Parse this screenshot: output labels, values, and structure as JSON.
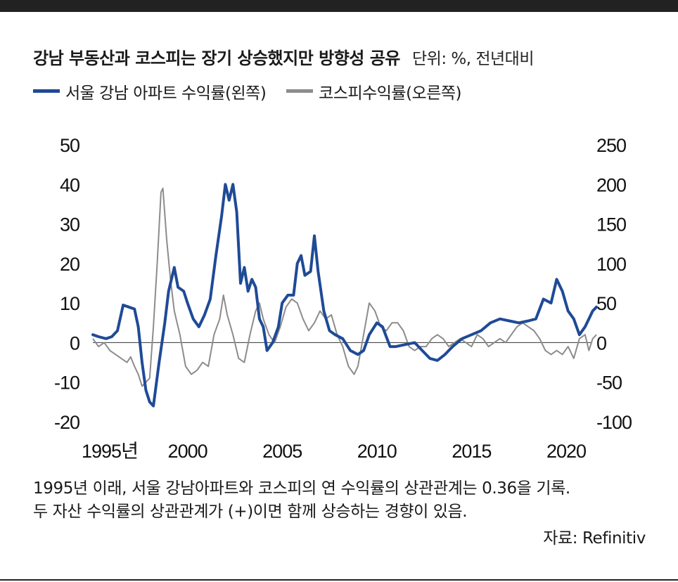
{
  "header": {
    "title": "강남 부동산과 코스피는 장기 상승했지만 방향성 공유",
    "unit": "단위: %, 전년대비"
  },
  "notes": {
    "line1": "1995년 이래, 서울 강남아파트와 코스피의 연 수익률의 상관관계는 0.36을 기록.",
    "line2": "두 자산 수익률의 상관관계가 (+)이면 함께 상승하는 경향이 있음.",
    "source": "자료: Refinitiv"
  },
  "colors": {
    "gangnam": "#1f4a96",
    "kospi": "#8c8c8c",
    "zero_line": "#333333"
  },
  "chart_data": {
    "type": "line",
    "title": "강남 부동산과 코스피는 장기 상승했지만 방향성 공유",
    "x_tick_labels": [
      "1995년",
      "2000",
      "2005",
      "2010",
      "2015",
      "2020"
    ],
    "x_tick_values": [
      1995,
      2000,
      2005,
      2010,
      2015,
      2020
    ],
    "xlim": [
      1995,
      2021.3
    ],
    "y_left": {
      "lim": [
        -20,
        50
      ],
      "ticks": [
        "50",
        "40",
        "30",
        "20",
        "10",
        "0",
        "-10",
        "-20"
      ]
    },
    "y_right": {
      "lim": [
        -100,
        250
      ],
      "ticks": [
        "250",
        "200",
        "150",
        "100",
        "50",
        "0",
        "-50",
        "-100"
      ]
    },
    "series": [
      {
        "name": "서울 강남 아파트 수익률(왼쪽)",
        "axis": "left",
        "points": [
          [
            1995.0,
            2
          ],
          [
            1995.3,
            1.5
          ],
          [
            1995.7,
            1
          ],
          [
            1996.0,
            1.5
          ],
          [
            1996.3,
            3
          ],
          [
            1996.6,
            9.5
          ],
          [
            1996.9,
            9
          ],
          [
            1997.2,
            8.5
          ],
          [
            1997.4,
            4
          ],
          [
            1997.6,
            -5
          ],
          [
            1997.8,
            -12
          ],
          [
            1998.0,
            -15
          ],
          [
            1998.2,
            -16
          ],
          [
            1998.5,
            -5
          ],
          [
            1998.8,
            5
          ],
          [
            1999.0,
            13
          ],
          [
            1999.3,
            19
          ],
          [
            1999.5,
            14
          ],
          [
            1999.8,
            13
          ],
          [
            2000.0,
            10
          ],
          [
            2000.3,
            6
          ],
          [
            2000.6,
            4
          ],
          [
            2000.9,
            7
          ],
          [
            2001.2,
            11
          ],
          [
            2001.5,
            22
          ],
          [
            2001.8,
            32
          ],
          [
            2002.0,
            40
          ],
          [
            2002.2,
            36
          ],
          [
            2002.4,
            40
          ],
          [
            2002.6,
            33
          ],
          [
            2002.8,
            15
          ],
          [
            2003.0,
            19
          ],
          [
            2003.2,
            13
          ],
          [
            2003.4,
            16
          ],
          [
            2003.6,
            14
          ],
          [
            2003.8,
            6
          ],
          [
            2004.0,
            4
          ],
          [
            2004.2,
            -2
          ],
          [
            2004.5,
            0
          ],
          [
            2004.8,
            4
          ],
          [
            2005.0,
            10
          ],
          [
            2005.3,
            12
          ],
          [
            2005.6,
            12
          ],
          [
            2005.8,
            20
          ],
          [
            2006.0,
            22
          ],
          [
            2006.2,
            17
          ],
          [
            2006.5,
            18
          ],
          [
            2006.7,
            27
          ],
          [
            2006.9,
            18
          ],
          [
            2007.2,
            8
          ],
          [
            2007.5,
            3
          ],
          [
            2007.8,
            2
          ],
          [
            2008.2,
            1
          ],
          [
            2008.6,
            -2
          ],
          [
            2009.0,
            -3
          ],
          [
            2009.3,
            -2
          ],
          [
            2009.6,
            2
          ],
          [
            2010.0,
            5
          ],
          [
            2010.3,
            4
          ],
          [
            2010.7,
            -1
          ],
          [
            2011.0,
            -1
          ],
          [
            2011.5,
            -0.5
          ],
          [
            2012.0,
            0
          ],
          [
            2012.4,
            -2
          ],
          [
            2012.8,
            -4
          ],
          [
            2013.2,
            -4.5
          ],
          [
            2013.6,
            -3
          ],
          [
            2014.0,
            -1
          ],
          [
            2014.5,
            1
          ],
          [
            2015.0,
            2
          ],
          [
            2015.5,
            3
          ],
          [
            2016.0,
            5
          ],
          [
            2016.5,
            6
          ],
          [
            2017.0,
            5.5
          ],
          [
            2017.5,
            5
          ],
          [
            2018.0,
            5.5
          ],
          [
            2018.4,
            6
          ],
          [
            2018.8,
            11
          ],
          [
            2019.2,
            10
          ],
          [
            2019.5,
            16
          ],
          [
            2019.8,
            13
          ],
          [
            2020.1,
            8
          ],
          [
            2020.4,
            6
          ],
          [
            2020.7,
            2
          ],
          [
            2021.0,
            4
          ],
          [
            2021.2,
            6
          ],
          [
            2021.4,
            8
          ],
          [
            2021.6,
            9
          ]
        ]
      },
      {
        "name": "코스피수익률(오른쪽)",
        "axis": "right",
        "points": [
          [
            1995.0,
            5
          ],
          [
            1995.3,
            -5
          ],
          [
            1995.6,
            0
          ],
          [
            1995.9,
            -10
          ],
          [
            1996.2,
            -15
          ],
          [
            1996.5,
            -20
          ],
          [
            1996.8,
            -25
          ],
          [
            1997.0,
            -18
          ],
          [
            1997.2,
            -30
          ],
          [
            1997.4,
            -40
          ],
          [
            1997.6,
            -55
          ],
          [
            1997.8,
            -50
          ],
          [
            1998.0,
            -45
          ],
          [
            1998.2,
            20
          ],
          [
            1998.4,
            100
          ],
          [
            1998.6,
            190
          ],
          [
            1998.7,
            195
          ],
          [
            1998.9,
            130
          ],
          [
            1999.1,
            80
          ],
          [
            1999.3,
            40
          ],
          [
            1999.6,
            10
          ],
          [
            1999.9,
            -30
          ],
          [
            2000.2,
            -40
          ],
          [
            2000.5,
            -35
          ],
          [
            2000.8,
            -25
          ],
          [
            2001.1,
            -30
          ],
          [
            2001.4,
            10
          ],
          [
            2001.7,
            30
          ],
          [
            2001.9,
            60
          ],
          [
            2002.1,
            35
          ],
          [
            2002.4,
            10
          ],
          [
            2002.7,
            -20
          ],
          [
            2003.0,
            -25
          ],
          [
            2003.3,
            10
          ],
          [
            2003.6,
            40
          ],
          [
            2003.8,
            50
          ],
          [
            2004.0,
            30
          ],
          [
            2004.3,
            10
          ],
          [
            2004.6,
            0
          ],
          [
            2004.9,
            20
          ],
          [
            2005.2,
            45
          ],
          [
            2005.5,
            55
          ],
          [
            2005.8,
            50
          ],
          [
            2006.1,
            30
          ],
          [
            2006.4,
            15
          ],
          [
            2006.7,
            25
          ],
          [
            2007.0,
            40
          ],
          [
            2007.3,
            30
          ],
          [
            2007.6,
            35
          ],
          [
            2007.9,
            10
          ],
          [
            2008.2,
            -5
          ],
          [
            2008.5,
            -30
          ],
          [
            2008.8,
            -40
          ],
          [
            2009.0,
            -30
          ],
          [
            2009.3,
            10
          ],
          [
            2009.6,
            50
          ],
          [
            2009.9,
            40
          ],
          [
            2010.2,
            20
          ],
          [
            2010.5,
            15
          ],
          [
            2010.8,
            25
          ],
          [
            2011.1,
            25
          ],
          [
            2011.4,
            15
          ],
          [
            2011.7,
            -5
          ],
          [
            2012.0,
            -10
          ],
          [
            2012.3,
            -5
          ],
          [
            2012.6,
            -5
          ],
          [
            2012.9,
            5
          ],
          [
            2013.2,
            10
          ],
          [
            2013.5,
            5
          ],
          [
            2013.8,
            -5
          ],
          [
            2014.1,
            0
          ],
          [
            2014.4,
            5
          ],
          [
            2014.7,
            0
          ],
          [
            2015.0,
            -5
          ],
          [
            2015.3,
            10
          ],
          [
            2015.6,
            5
          ],
          [
            2015.9,
            -5
          ],
          [
            2016.2,
            0
          ],
          [
            2016.5,
            5
          ],
          [
            2016.8,
            0
          ],
          [
            2017.1,
            10
          ],
          [
            2017.4,
            20
          ],
          [
            2017.7,
            25
          ],
          [
            2018.0,
            20
          ],
          [
            2018.3,
            15
          ],
          [
            2018.6,
            5
          ],
          [
            2018.9,
            -10
          ],
          [
            2019.2,
            -15
          ],
          [
            2019.5,
            -10
          ],
          [
            2019.8,
            -15
          ],
          [
            2020.1,
            -5
          ],
          [
            2020.4,
            -20
          ],
          [
            2020.7,
            5
          ],
          [
            2021.0,
            10
          ],
          [
            2021.2,
            -10
          ],
          [
            2021.4,
            5
          ],
          [
            2021.6,
            10
          ]
        ]
      }
    ]
  }
}
